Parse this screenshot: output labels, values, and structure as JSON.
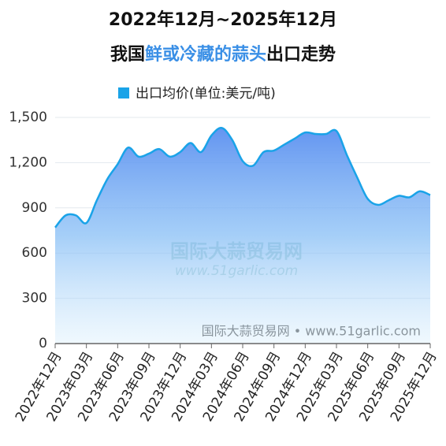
{
  "chart_data": {
    "type": "area",
    "title": "2022年12月~2025年12月",
    "subtitle_parts": [
      "我国",
      "鲜或冷藏的蒜头",
      "出口走势"
    ],
    "watermark": {
      "name": "国际大蒜贸易网",
      "url": "www.51garlic.com"
    },
    "source": "国际大蒜贸易网 • www.51garlic.com",
    "categories": [
      "2022年12月",
      null,
      null,
      "2023年03月",
      null,
      null,
      "2023年06月",
      null,
      null,
      "2023年09月",
      null,
      null,
      "2023年12月",
      null,
      null,
      "2024年03月",
      null,
      null,
      "2024年06月",
      null,
      null,
      "2024年09月",
      null,
      null,
      "2024年12月",
      null,
      null,
      "2025年03月",
      null,
      null,
      "2025年06月",
      null,
      null,
      "2025年09月",
      null,
      null,
      "2025年12月"
    ],
    "series": [
      {
        "name": "出口均价(单位:美元/吨)",
        "color": "#1aa3e8",
        "values": [
          770,
          850,
          850,
          800,
          950,
          1090,
          1190,
          1300,
          1240,
          1260,
          1290,
          1240,
          1270,
          1330,
          1270,
          1380,
          1430,
          1350,
          1210,
          1180,
          1270,
          1280,
          1320,
          1360,
          1400,
          1390,
          1390,
          1410,
          1250,
          1100,
          960,
          920,
          950,
          980,
          970,
          1010,
          985
        ]
      }
    ],
    "ylim": [
      0,
      1500
    ],
    "yticks": [
      0,
      300,
      600,
      900,
      {
        "value": 1200,
        "label": "1,200"
      },
      {
        "value": 1500,
        "label": "1,500"
      }
    ],
    "grid": true
  }
}
